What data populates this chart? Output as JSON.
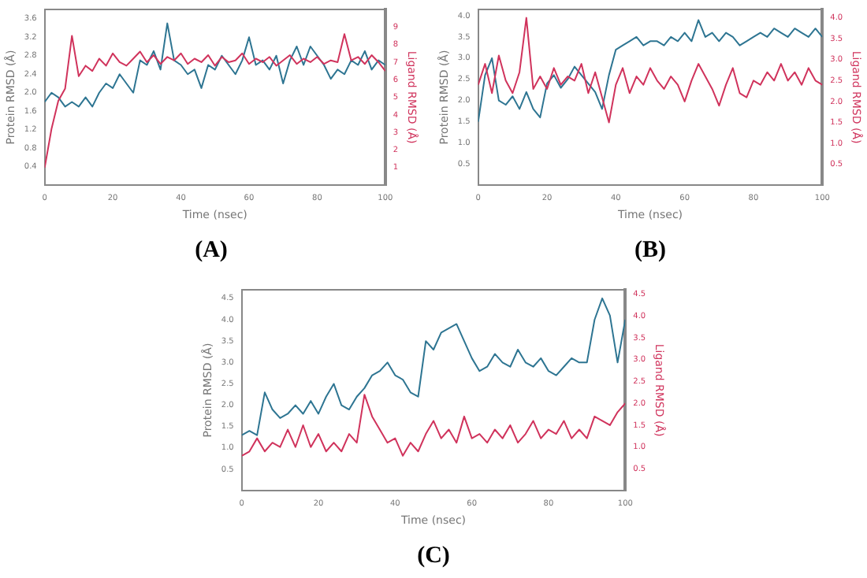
{
  "chart_data": [
    {
      "type": "line",
      "title": "(A)",
      "xlabel": "Time (nsec)",
      "ylabel": "Protein RMSD (Å)",
      "y2label": "Ligand RMSD (Å)",
      "grid": false,
      "legend": false,
      "marker": "none",
      "line_style": "solid",
      "x": [
        0,
        2,
        4,
        6,
        8,
        10,
        12,
        14,
        16,
        18,
        20,
        22,
        24,
        26,
        28,
        30,
        32,
        34,
        36,
        38,
        40,
        42,
        44,
        46,
        48,
        50,
        52,
        54,
        56,
        58,
        60,
        62,
        64,
        66,
        68,
        70,
        72,
        74,
        76,
        78,
        80,
        82,
        84,
        86,
        88,
        90,
        92,
        94,
        96,
        98,
        100
      ],
      "xlim": [
        0,
        100
      ],
      "xticks": [
        0,
        20,
        40,
        60,
        80,
        100
      ],
      "ylim": [
        0,
        3.8
      ],
      "yticks": [
        0.4,
        0.8,
        1.2,
        1.6,
        {
          "value": 2,
          "label": "2.0"
        },
        2.4,
        2.8,
        3.2,
        3.6
      ],
      "y2lim": [
        0,
        10
      ],
      "y2ticks": [
        1,
        2,
        3,
        4,
        5,
        6,
        7,
        8,
        9
      ],
      "series": [
        {
          "color": "#2e7592",
          "values": [
            1.8,
            2.0,
            1.9,
            1.7,
            1.8,
            1.7,
            1.9,
            1.7,
            2.0,
            2.2,
            2.1,
            2.4,
            2.2,
            2.0,
            2.7,
            2.6,
            2.9,
            2.5,
            3.5,
            2.7,
            2.6,
            2.4,
            2.5,
            2.1,
            2.6,
            2.5,
            2.8,
            2.6,
            2.4,
            2.7,
            3.2,
            2.6,
            2.7,
            2.5,
            2.8,
            2.2,
            2.7,
            3.0,
            2.6,
            3.0,
            2.8,
            2.6,
            2.3,
            2.5,
            2.4,
            2.7,
            2.6,
            2.9,
            2.5,
            2.7,
            2.6
          ]
        },
        {
          "color": "#d0335c",
          "axis": "y2",
          "values": [
            1.0,
            3.2,
            4.8,
            5.5,
            8.5,
            6.2,
            6.8,
            6.5,
            7.2,
            6.8,
            7.5,
            7.0,
            6.8,
            7.2,
            7.6,
            7.0,
            7.4,
            6.9,
            7.3,
            7.1,
            7.5,
            6.9,
            7.2,
            7.0,
            7.4,
            6.8,
            7.3,
            7.0,
            7.1,
            7.5,
            6.9,
            7.2,
            7.0,
            7.3,
            6.8,
            7.1,
            7.4,
            6.9,
            7.2,
            7.0,
            7.3,
            6.9,
            7.1,
            7.0,
            8.6,
            7.1,
            7.3,
            6.9,
            7.4,
            7.0,
            6.5
          ]
        }
      ]
    },
    {
      "type": "line",
      "title": "(B)",
      "xlabel": "Time (nsec)",
      "ylabel": "Protein RMSD (Å)",
      "y2label": "Ligand RMSD (Å)",
      "grid": false,
      "legend": false,
      "marker": "none",
      "line_style": "solid",
      "x": [
        0,
        2,
        4,
        6,
        8,
        10,
        12,
        14,
        16,
        18,
        20,
        22,
        24,
        26,
        28,
        30,
        32,
        34,
        36,
        38,
        40,
        42,
        44,
        46,
        48,
        50,
        52,
        54,
        56,
        58,
        60,
        62,
        64,
        66,
        68,
        70,
        72,
        74,
        76,
        78,
        80,
        82,
        84,
        86,
        88,
        90,
        92,
        94,
        96,
        98,
        100
      ],
      "xlim": [
        0,
        100
      ],
      "xticks": [
        0,
        20,
        40,
        60,
        80,
        100
      ],
      "ylim": [
        0,
        4.15
      ],
      "yticks": [
        {
          "value": 0.5,
          "label": "0.5"
        },
        {
          "value": 1,
          "label": "1.0"
        },
        {
          "value": 1.5,
          "label": "1.5"
        },
        {
          "value": 2,
          "label": "2.0"
        },
        {
          "value": 2.5,
          "label": "2.5"
        },
        {
          "value": 3,
          "label": "3.0"
        },
        {
          "value": 3.5,
          "label": "3.5"
        },
        {
          "value": 4,
          "label": "4.0"
        }
      ],
      "y2lim": [
        0,
        4.2
      ],
      "y2ticks": [
        {
          "value": 0.5,
          "label": "0.5"
        },
        {
          "value": 1,
          "label": "1.0"
        },
        {
          "value": 1.5,
          "label": "1.5"
        },
        {
          "value": 2,
          "label": "2.0"
        },
        {
          "value": 2.5,
          "label": "2.5"
        },
        {
          "value": 3,
          "label": "3.0"
        },
        {
          "value": 3.5,
          "label": "3.5"
        },
        {
          "value": 4,
          "label": "4.0"
        }
      ],
      "series": [
        {
          "color": "#2e7592",
          "values": [
            1.5,
            2.6,
            3.0,
            2.0,
            1.9,
            2.1,
            1.8,
            2.2,
            1.8,
            1.6,
            2.4,
            2.6,
            2.3,
            2.5,
            2.8,
            2.6,
            2.4,
            2.2,
            1.8,
            2.6,
            3.2,
            3.3,
            3.4,
            3.5,
            3.3,
            3.4,
            3.4,
            3.3,
            3.5,
            3.4,
            3.6,
            3.4,
            3.9,
            3.5,
            3.6,
            3.4,
            3.6,
            3.5,
            3.3,
            3.4,
            3.5,
            3.6,
            3.5,
            3.7,
            3.6,
            3.5,
            3.7,
            3.6,
            3.5,
            3.7,
            3.5
          ]
        },
        {
          "color": "#d0335c",
          "axis": "y2",
          "values": [
            2.4,
            2.9,
            2.2,
            3.1,
            2.5,
            2.2,
            2.7,
            4.0,
            2.3,
            2.6,
            2.3,
            2.8,
            2.4,
            2.6,
            2.5,
            2.9,
            2.2,
            2.7,
            2.1,
            1.5,
            2.4,
            2.8,
            2.2,
            2.6,
            2.4,
            2.8,
            2.5,
            2.3,
            2.6,
            2.4,
            2.0,
            2.5,
            2.9,
            2.6,
            2.3,
            1.9,
            2.4,
            2.8,
            2.2,
            2.1,
            2.5,
            2.4,
            2.7,
            2.5,
            2.9,
            2.5,
            2.7,
            2.4,
            2.8,
            2.5,
            2.4
          ]
        }
      ]
    },
    {
      "type": "line",
      "title": "(C)",
      "xlabel": "Time (nsec)",
      "ylabel": "Protein RMSD (Å)",
      "y2label": "Ligand RMSD (Å)",
      "grid": false,
      "legend": false,
      "marker": "none",
      "line_style": "solid",
      "x": [
        0,
        2,
        4,
        6,
        8,
        10,
        12,
        14,
        16,
        18,
        20,
        22,
        24,
        26,
        28,
        30,
        32,
        34,
        36,
        38,
        40,
        42,
        44,
        46,
        48,
        50,
        52,
        54,
        56,
        58,
        60,
        62,
        64,
        66,
        68,
        70,
        72,
        74,
        76,
        78,
        80,
        82,
        84,
        86,
        88,
        90,
        92,
        94,
        96,
        98,
        100
      ],
      "xlim": [
        0,
        100
      ],
      "xticks": [
        0,
        20,
        40,
        60,
        80,
        100
      ],
      "ylim": [
        0,
        4.7
      ],
      "yticks": [
        {
          "value": 0.5,
          "label": "0.5"
        },
        {
          "value": 1,
          "label": "1.0"
        },
        {
          "value": 1.5,
          "label": "1.5"
        },
        {
          "value": 2,
          "label": "2.0"
        },
        {
          "value": 2.5,
          "label": "2.5"
        },
        {
          "value": 3,
          "label": "3.0"
        },
        {
          "value": 3.5,
          "label": "3.5"
        },
        {
          "value": 4,
          "label": "4.0"
        },
        {
          "value": 4.5,
          "label": "4.5"
        }
      ],
      "y2lim": [
        0,
        4.6
      ],
      "y2ticks": [
        {
          "value": 0.5,
          "label": "0.5"
        },
        {
          "value": 1,
          "label": "1.0"
        },
        {
          "value": 1.5,
          "label": "1.5"
        },
        {
          "value": 2,
          "label": "2.0"
        },
        {
          "value": 2.5,
          "label": "2.5"
        },
        {
          "value": 3,
          "label": "3.0"
        },
        {
          "value": 3.5,
          "label": "3.5"
        },
        {
          "value": 4,
          "label": "4.0"
        },
        {
          "value": 4.5,
          "label": "4.5"
        }
      ],
      "series": [
        {
          "color": "#2e7592",
          "values": [
            1.3,
            1.4,
            1.3,
            2.3,
            1.9,
            1.7,
            1.8,
            2.0,
            1.8,
            2.1,
            1.8,
            2.2,
            2.5,
            2.0,
            1.9,
            2.2,
            2.4,
            2.7,
            2.8,
            3.0,
            2.7,
            2.6,
            2.3,
            2.2,
            3.5,
            3.3,
            3.7,
            3.8,
            3.9,
            3.5,
            3.1,
            2.8,
            2.9,
            3.2,
            3.0,
            2.9,
            3.3,
            3.0,
            2.9,
            3.1,
            2.8,
            2.7,
            2.9,
            3.1,
            3.0,
            3.0,
            4.0,
            4.5,
            4.1,
            3.0,
            4.0
          ]
        },
        {
          "color": "#d0335c",
          "axis": "y2",
          "values": [
            0.8,
            0.9,
            1.2,
            0.9,
            1.1,
            1.0,
            1.4,
            1.0,
            1.5,
            1.0,
            1.3,
            0.9,
            1.1,
            0.9,
            1.3,
            1.1,
            2.2,
            1.7,
            1.4,
            1.1,
            1.2,
            0.8,
            1.1,
            0.9,
            1.3,
            1.6,
            1.2,
            1.4,
            1.1,
            1.7,
            1.2,
            1.3,
            1.1,
            1.4,
            1.2,
            1.5,
            1.1,
            1.3,
            1.6,
            1.2,
            1.4,
            1.3,
            1.6,
            1.2,
            1.4,
            1.2,
            1.7,
            1.6,
            1.5,
            1.8,
            2.0
          ]
        }
      ]
    }
  ]
}
